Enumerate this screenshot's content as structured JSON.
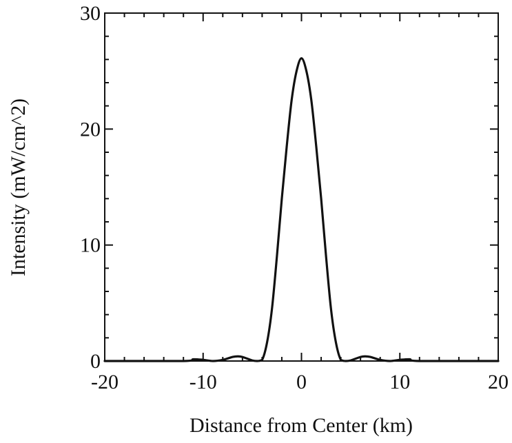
{
  "chart_data": {
    "type": "line",
    "title": "",
    "xlabel": "Distance from Center (km)",
    "ylabel": "Intensity (mW/cm^2)",
    "xlim": [
      -20,
      20
    ],
    "ylim": [
      0,
      30
    ],
    "x_ticks": [
      "-20",
      "-10",
      "0",
      "10",
      "20"
    ],
    "y_ticks": [
      "0",
      "10",
      "20",
      "30"
    ],
    "grid": false,
    "legend": "none",
    "line_color": "#111111",
    "series": [
      {
        "x": [
          -20,
          -12,
          -11,
          -10,
          -9,
          -8,
          -7,
          -6.5,
          -6,
          -5,
          -4.5,
          -4,
          -3.5,
          -3,
          -2.5,
          -2,
          -1.5,
          -1,
          -0.5,
          0,
          0.5,
          1,
          1.5,
          2,
          2.5,
          3,
          3.5,
          4,
          4.5,
          5,
          6,
          6.5,
          7,
          8,
          9,
          10,
          11,
          12,
          20
        ],
        "y": [
          0,
          0,
          0.15,
          0.1,
          0,
          0.1,
          0.35,
          0.4,
          0.35,
          0.05,
          0,
          0.1,
          1.6,
          4.5,
          9,
          14,
          18.5,
          22.5,
          25,
          26.1,
          25,
          22.5,
          18.5,
          14,
          9,
          4.5,
          1.6,
          0.1,
          0,
          0.05,
          0.35,
          0.4,
          0.35,
          0.1,
          0,
          0.1,
          0.15,
          0,
          0
        ]
      }
    ]
  }
}
